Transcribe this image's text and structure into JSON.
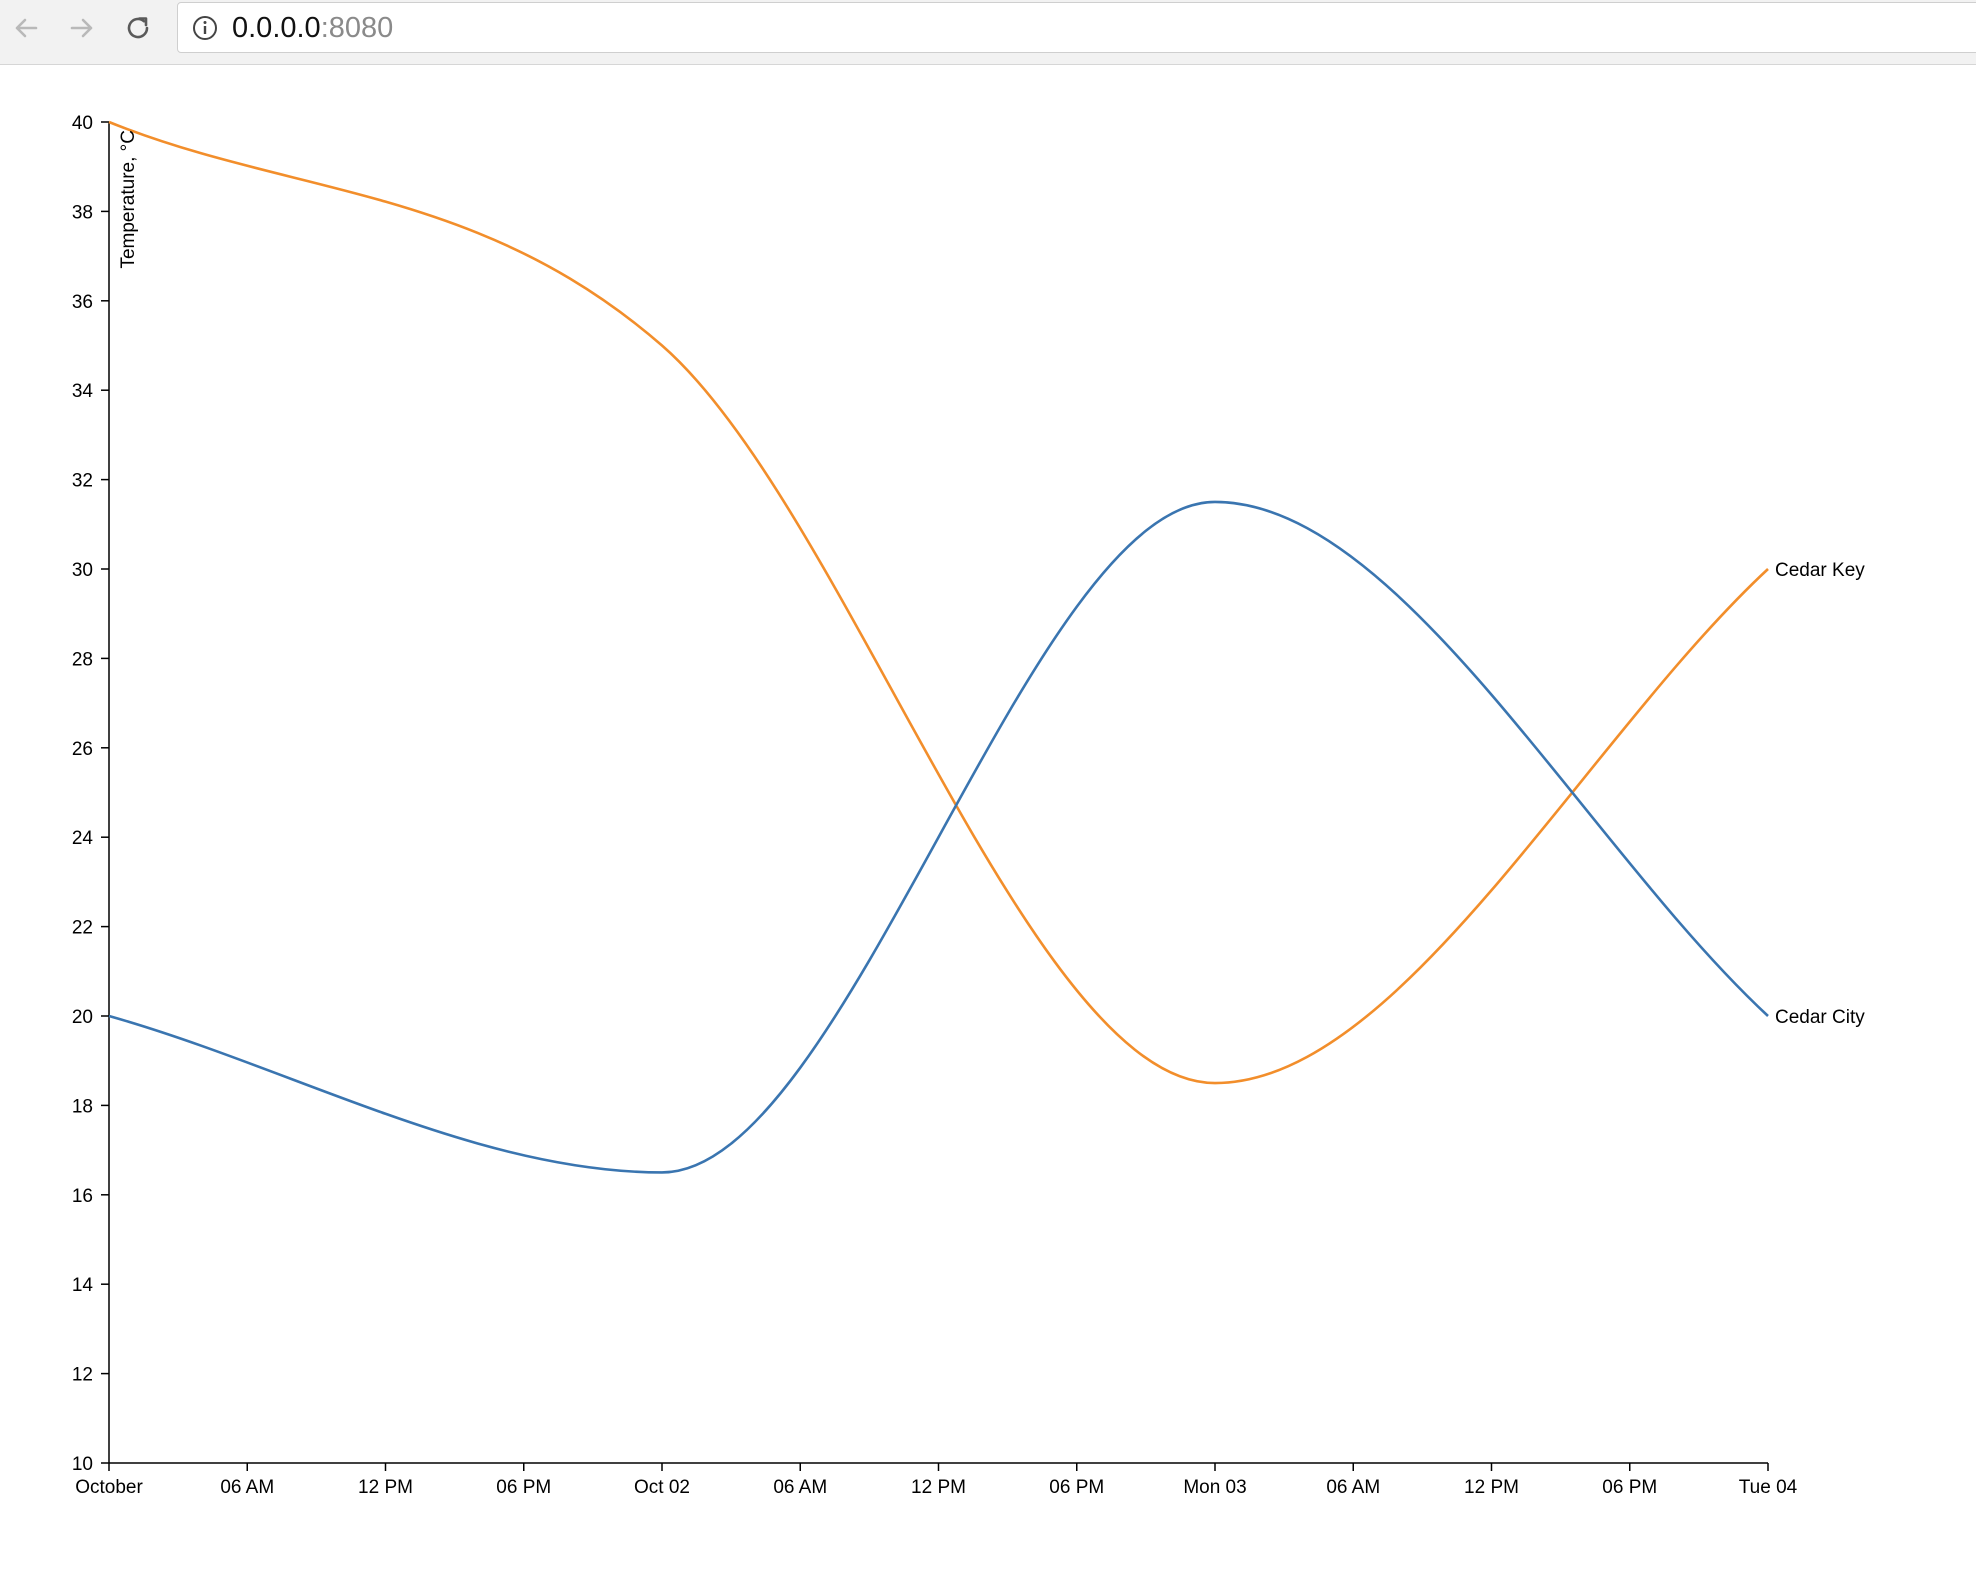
{
  "browser": {
    "url_host": "0.0.0.0",
    "url_port": ":8080",
    "icons": {
      "back": "arrow-left-icon",
      "forward": "arrow-right-icon",
      "reload": "reload-icon",
      "info": "info-icon"
    }
  },
  "chart_data": {
    "type": "line",
    "title": "",
    "xlabel": "",
    "ylabel": "Temperature, °C",
    "ylim": [
      10,
      40
    ],
    "yticks": [
      10,
      12,
      14,
      16,
      18,
      20,
      22,
      24,
      26,
      28,
      30,
      32,
      34,
      36,
      38,
      40
    ],
    "x_domain": [
      "2017-10-01T00:00",
      "2017-10-04T00:00"
    ],
    "xticks": [
      {
        "t": "2017-10-01T00:00",
        "label": "October"
      },
      {
        "t": "2017-10-01T06:00",
        "label": "06 AM"
      },
      {
        "t": "2017-10-01T12:00",
        "label": "12 PM"
      },
      {
        "t": "2017-10-01T18:00",
        "label": "06 PM"
      },
      {
        "t": "2017-10-02T00:00",
        "label": "Oct 02"
      },
      {
        "t": "2017-10-02T06:00",
        "label": "06 AM"
      },
      {
        "t": "2017-10-02T12:00",
        "label": "12 PM"
      },
      {
        "t": "2017-10-02T18:00",
        "label": "06 PM"
      },
      {
        "t": "2017-10-03T00:00",
        "label": "Mon 03"
      },
      {
        "t": "2017-10-03T06:00",
        "label": "06 AM"
      },
      {
        "t": "2017-10-03T12:00",
        "label": "12 PM"
      },
      {
        "t": "2017-10-03T18:00",
        "label": "06 PM"
      },
      {
        "t": "2017-10-04T00:00",
        "label": "Tue 04"
      }
    ],
    "grid": false,
    "legend": "labels at line ends",
    "series": [
      {
        "name": "Cedar Key",
        "color": "#f28e2b",
        "points": [
          {
            "x": "2017-10-01T00:00",
            "y": 40
          },
          {
            "x": "2017-10-02T00:00",
            "y": 35
          },
          {
            "x": "2017-10-03T00:00",
            "y": 18.5
          },
          {
            "x": "2017-10-04T00:00",
            "y": 30
          }
        ]
      },
      {
        "name": "Cedar City",
        "color": "#3a75b0",
        "points": [
          {
            "x": "2017-10-01T00:00",
            "y": 20
          },
          {
            "x": "2017-10-02T00:00",
            "y": 16.5
          },
          {
            "x": "2017-10-03T00:00",
            "y": 31.5
          },
          {
            "x": "2017-10-04T00:00",
            "y": 20
          }
        ]
      }
    ]
  }
}
